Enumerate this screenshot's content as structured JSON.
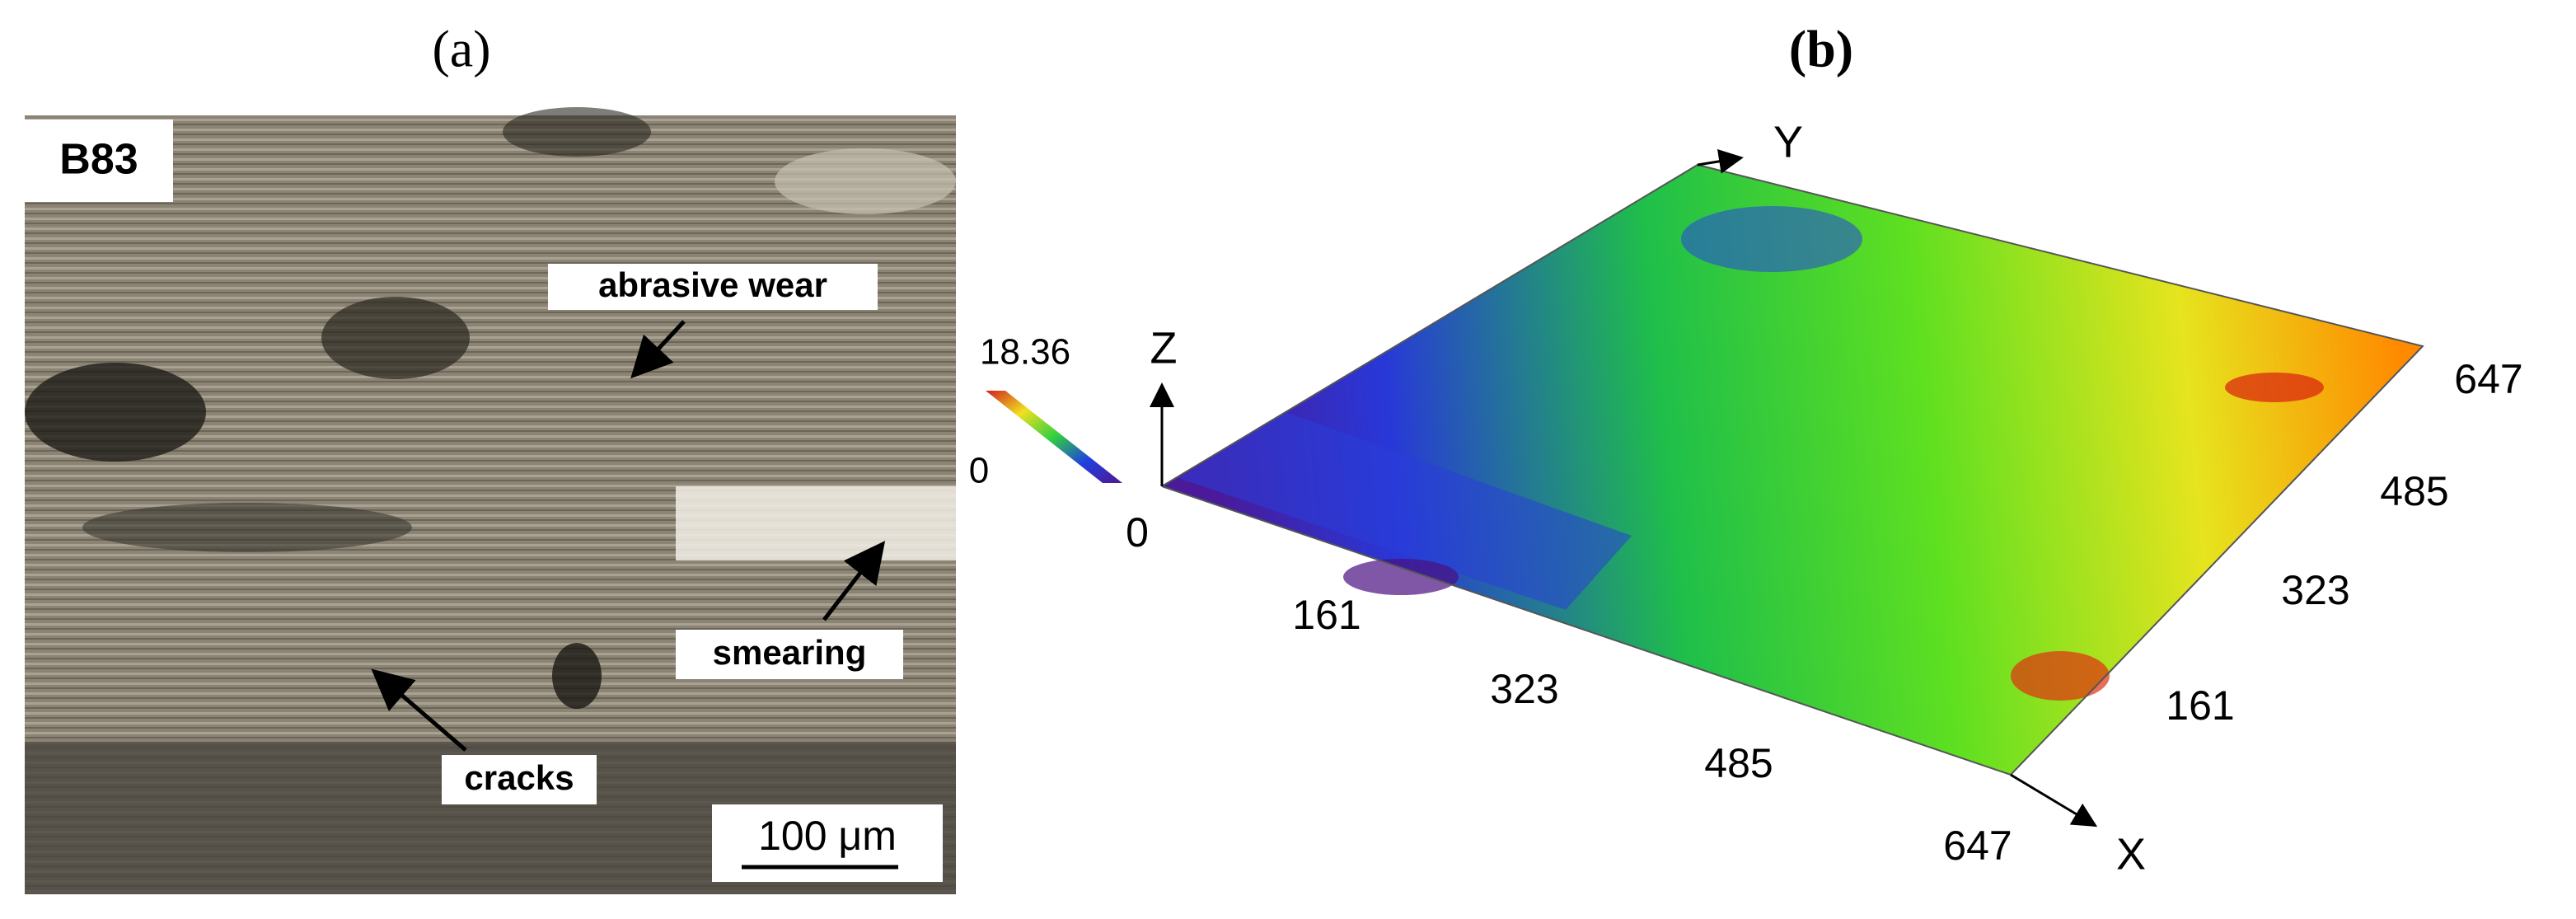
{
  "panel_a": {
    "label": "(a)",
    "sample": "B83",
    "annotations": [
      "abrasive wear",
      "smearing",
      "cracks"
    ],
    "scale_bar": "100 μm"
  },
  "panel_b": {
    "label": "(b)",
    "colorbar": {
      "max": "18.36",
      "min": "0"
    },
    "axes": {
      "z": "Z",
      "y": "Y",
      "x": "X"
    },
    "x_ticks": [
      "0",
      "161",
      "323",
      "485",
      "647"
    ],
    "y_ticks": [
      "161",
      "323",
      "485",
      "647"
    ]
  }
}
